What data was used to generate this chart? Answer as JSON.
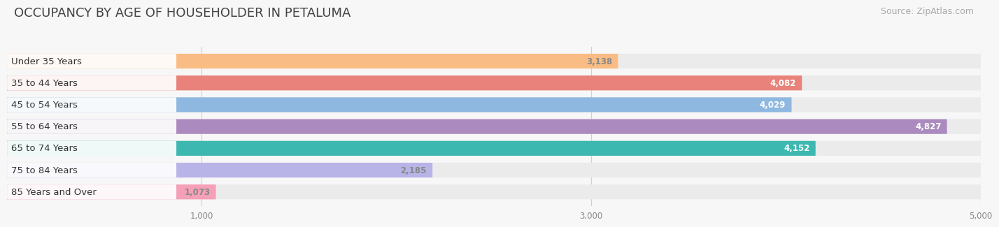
{
  "title": "OCCUPANCY BY AGE OF HOUSEHOLDER IN PETALUMA",
  "source": "Source: ZipAtlas.com",
  "categories": [
    "Under 35 Years",
    "35 to 44 Years",
    "45 to 54 Years",
    "55 to 64 Years",
    "65 to 74 Years",
    "75 to 84 Years",
    "85 Years and Over"
  ],
  "values": [
    3138,
    4082,
    4029,
    4827,
    4152,
    2185,
    1073
  ],
  "bar_colors": [
    "#f9bc84",
    "#e8827a",
    "#8fb8e0",
    "#ab8bbf",
    "#3db8b0",
    "#b8b4e8",
    "#f5a0b8"
  ],
  "value_label_colors": [
    "#888888",
    "#ffffff",
    "#ffffff",
    "#ffffff",
    "#ffffff",
    "#888888",
    "#888888"
  ],
  "xlim": [
    0,
    5000
  ],
  "xticks": [
    1000,
    3000,
    5000
  ],
  "bar_bg_color": "#ebebeb",
  "background_color": "#f7f7f7",
  "label_bg_color": "#ffffff",
  "title_fontsize": 13,
  "source_fontsize": 9,
  "cat_fontsize": 9.5,
  "val_fontsize": 8.5
}
